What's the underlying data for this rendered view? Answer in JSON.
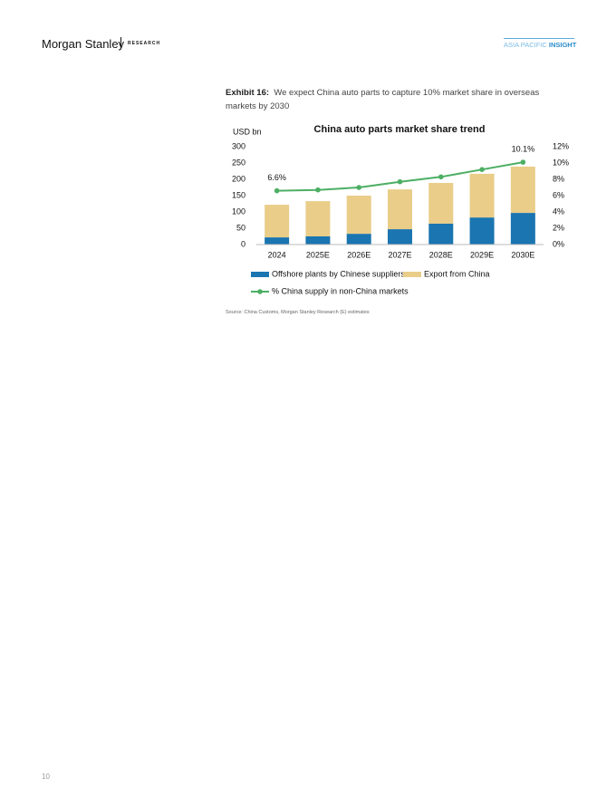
{
  "header": {
    "brand": "Morgan Stanley",
    "section": "RESEARCH",
    "series_a": "ASIA PACIFIC",
    "series_b": "INSIGHT"
  },
  "exhibit": {
    "label": "Exhibit 16:",
    "caption": "We expect China auto parts to capture 10% market share in overseas markets by 2030"
  },
  "chart_data": {
    "type": "bar",
    "stacked": true,
    "title": "China auto parts market share trend",
    "y_label": "USD bn",
    "categories": [
      "2024",
      "2025E",
      "2026E",
      "2027E",
      "2028E",
      "2029E",
      "2030E"
    ],
    "series": [
      {
        "name": "Offshore plants by Chinese suppliers",
        "color": "#1a75b0",
        "values": [
          22,
          25,
          33,
          47,
          64,
          83,
          97
        ]
      },
      {
        "name": "Export from China",
        "color": "#e9cd89",
        "values": [
          100,
          108,
          117,
          122,
          125,
          134,
          142
        ]
      },
      {
        "name": "% China supply in non-China markets",
        "type": "line",
        "axis": "y2",
        "color": "#4caf64",
        "values": [
          6.6,
          6.7,
          7.0,
          7.7,
          8.3,
          9.2,
          10.1
        ],
        "value_labels": [
          "6.6%",
          null,
          null,
          null,
          null,
          null,
          "10.1%"
        ]
      }
    ],
    "ylim": [
      0,
      300
    ],
    "yticks": [
      0,
      50,
      100,
      150,
      200,
      250,
      300
    ],
    "y2lim": [
      0,
      12
    ],
    "y2ticks": [
      {
        "value": 0,
        "label": "0%"
      },
      {
        "value": 2,
        "label": "2%"
      },
      {
        "value": 4,
        "label": "4%"
      },
      {
        "value": 6,
        "label": "6%"
      },
      {
        "value": 8,
        "label": "8%"
      },
      {
        "value": 10,
        "label": "10%"
      },
      {
        "value": 12,
        "label": "12%"
      }
    ],
    "grid": false
  },
  "source": "Source: China Customs, Morgan Stanley Research (E) estimates",
  "page_number": "10"
}
